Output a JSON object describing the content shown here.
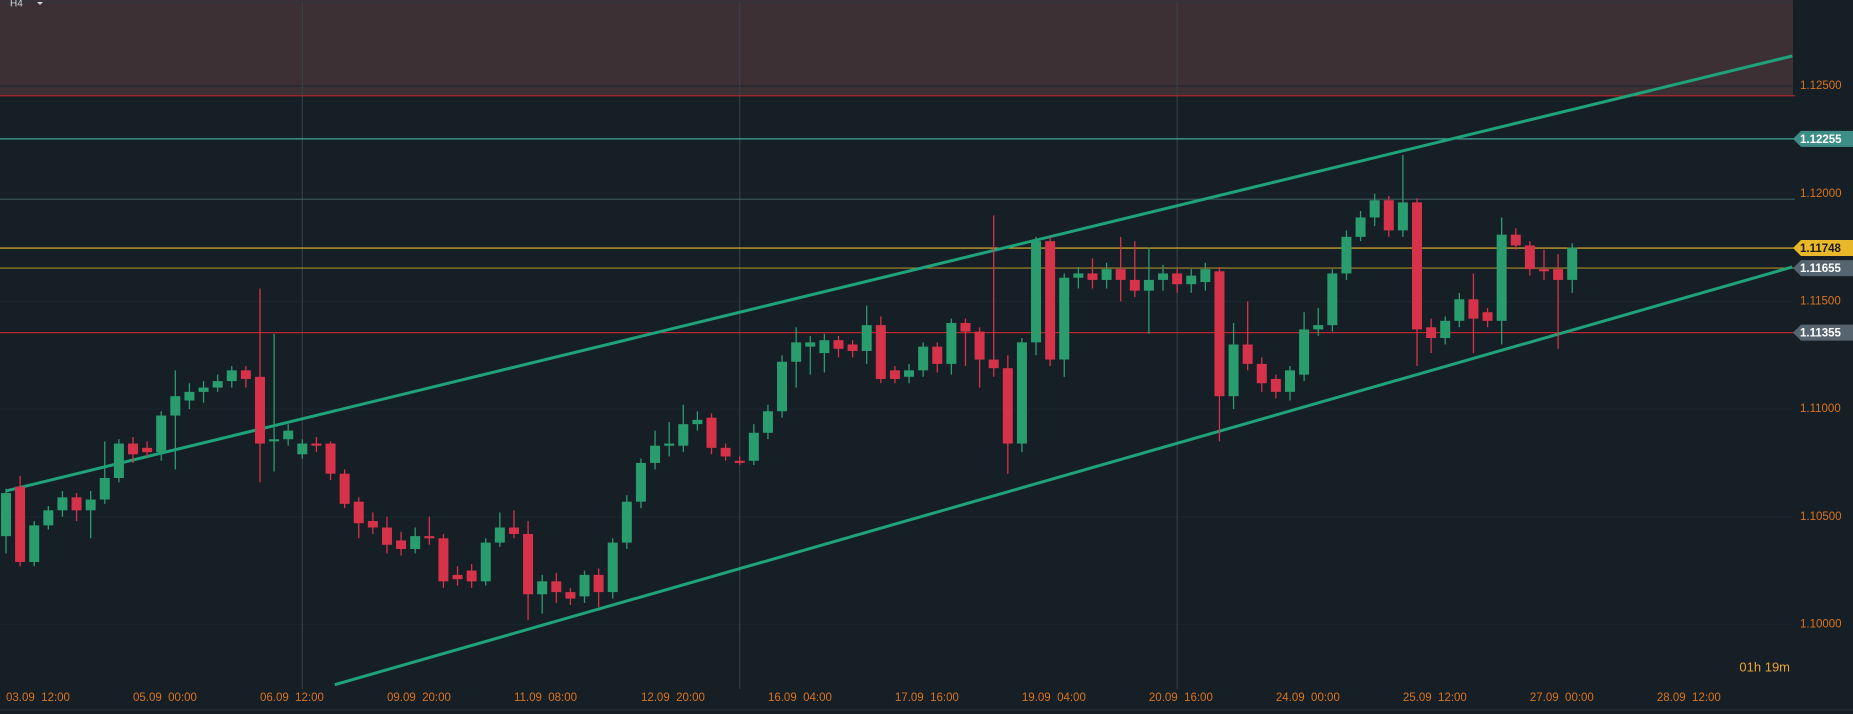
{
  "header": {
    "timeframe": "H4"
  },
  "chart_data": {
    "type": "candlestick",
    "timer": "01h 19m",
    "categories": [
      "03.09  12:00",
      null,
      null,
      null,
      null,
      null,
      null,
      null,
      null,
      "05.09  00:00",
      null,
      null,
      null,
      null,
      null,
      null,
      null,
      null,
      "06.09  12:00",
      null,
      null,
      null,
      null,
      null,
      null,
      null,
      null,
      "09.09  20:00",
      null,
      null,
      null,
      null,
      null,
      null,
      null,
      null,
      "11.09  08:00",
      null,
      null,
      null,
      null,
      null,
      null,
      null,
      null,
      "12.09  20:00",
      null,
      null,
      null,
      null,
      null,
      null,
      null,
      null,
      "16.09  04:00",
      null,
      null,
      null,
      null,
      null,
      null,
      null,
      null,
      "17.09  16:00",
      null,
      null,
      null,
      null,
      null,
      null,
      null,
      null,
      "19.09  04:00",
      null,
      null,
      null,
      null,
      null,
      null,
      null,
      null,
      "20.09  16:00",
      null,
      null,
      null,
      null,
      null,
      null,
      null,
      null,
      "24.09  00:00",
      null,
      null,
      null,
      null,
      null,
      null,
      null,
      null,
      "25.09  12:00",
      null,
      null,
      null,
      null,
      null,
      null,
      null,
      null,
      "27.09  00:00",
      null,
      null,
      null,
      null,
      null,
      null,
      null,
      null,
      "28.09  12:00"
    ],
    "open": [
      1.1041,
      1.1064,
      1.1029,
      1.1046,
      1.1053,
      1.1059,
      1.1053,
      1.1058,
      1.1068,
      1.1084,
      1.1082,
      1.108,
      1.1097,
      1.1104,
      1.1108,
      1.111,
      1.1113,
      1.1118,
      1.1115,
      1.1085,
      1.1086,
      1.1079,
      1.1084,
      1.1084,
      1.107,
      1.1057,
      1.1048,
      1.1045,
      1.1039,
      1.1035,
      1.1041,
      1.104,
      1.1023,
      1.1025,
      1.102,
      1.1038,
      1.1045,
      1.1042,
      1.1014,
      1.102,
      1.1015,
      1.1013,
      1.1023,
      1.1015,
      1.1038,
      1.1057,
      1.1075,
      1.1083,
      1.1083,
      1.1093,
      1.1096,
      1.1082,
      1.1076,
      1.1076,
      1.1089,
      1.1099,
      1.1122,
      1.1129,
      1.1126,
      1.1132,
      1.113,
      1.1127,
      1.1139,
      1.1118,
      1.1115,
      1.1118,
      1.1129,
      1.1121,
      1.114,
      1.1136,
      1.1123,
      1.1119,
      1.1084,
      1.1131,
      1.1178,
      1.1123,
      1.1161,
      1.1163,
      1.116,
      1.1165,
      1.116,
      1.1155,
      1.116,
      1.1163,
      1.1158,
      1.1159,
      1.1164,
      1.1106,
      1.113,
      1.1121,
      1.1114,
      1.1108,
      1.1116,
      1.1137,
      1.1139,
      1.1163,
      1.118,
      1.1189,
      1.1197,
      1.1183,
      1.1196,
      1.1138,
      1.1133,
      1.1141,
      1.1151,
      1.1145,
      1.1141,
      1.1181,
      1.1176,
      1.1165,
      1.1165,
      1.116,
      null,
      null,
      null,
      null,
      null,
      null
    ],
    "high": [
      1.1063,
      1.1069,
      1.1048,
      1.1055,
      1.1062,
      1.1061,
      1.1062,
      1.1085,
      1.1086,
      1.1087,
      1.1085,
      1.1099,
      1.1118,
      1.1112,
      1.1113,
      1.1116,
      1.112,
      1.112,
      1.1156,
      1.1135,
      1.1093,
      1.1086,
      1.1087,
      1.1085,
      1.1072,
      1.1059,
      1.1052,
      1.105,
      1.1043,
      1.1045,
      1.105,
      1.1042,
      1.1027,
      1.1028,
      1.104,
      1.1052,
      1.1053,
      1.1048,
      1.1023,
      1.1024,
      1.1017,
      1.1025,
      1.1026,
      1.104,
      1.106,
      1.1077,
      1.109,
      1.1094,
      1.1102,
      1.1099,
      1.1098,
      1.1084,
      1.1078,
      1.1093,
      1.1102,
      1.1125,
      1.1138,
      1.1134,
      1.1135,
      1.1134,
      1.1132,
      1.1148,
      1.1143,
      1.112,
      1.1121,
      1.1131,
      1.1131,
      1.1142,
      1.1142,
      1.1138,
      1.119,
      1.1125,
      1.1133,
      1.118,
      1.118,
      1.1163,
      1.1166,
      1.117,
      1.1168,
      1.118,
      1.1178,
      1.1175,
      1.1167,
      1.1165,
      1.1165,
      1.1168,
      1.1166,
      1.114,
      1.115,
      1.1124,
      1.1116,
      1.112,
      1.1145,
      1.1147,
      1.1165,
      1.1183,
      1.1192,
      1.12,
      1.1199,
      1.1218,
      1.1198,
      1.1142,
      1.1143,
      1.1154,
      1.1163,
      1.1147,
      1.1189,
      1.1184,
      1.1178,
      1.1174,
      1.1172,
      1.1177,
      null,
      null,
      null,
      null,
      null,
      null
    ],
    "low": [
      1.1033,
      1.1027,
      1.1027,
      1.1044,
      1.105,
      1.1048,
      1.104,
      1.1056,
      1.1066,
      1.1075,
      1.1078,
      1.1076,
      1.1072,
      1.11,
      1.1103,
      1.1108,
      1.111,
      1.111,
      1.1066,
      1.1071,
      1.1083,
      1.1077,
      1.108,
      1.1067,
      1.1054,
      1.104,
      1.1042,
      1.1033,
      1.1032,
      1.1033,
      1.1037,
      1.1017,
      1.1018,
      1.1017,
      1.1018,
      1.1036,
      1.104,
      1.1002,
      1.1005,
      1.101,
      1.1009,
      1.101,
      1.1008,
      1.1012,
      1.1035,
      1.1054,
      1.1072,
      1.1078,
      1.108,
      1.109,
      1.1079,
      1.1076,
      1.1074,
      1.1074,
      1.1086,
      1.1096,
      1.111,
      1.1116,
      1.1117,
      1.1124,
      1.1124,
      1.1121,
      1.1112,
      1.1112,
      1.1112,
      1.1115,
      1.1117,
      1.1116,
      1.112,
      1.111,
      1.1115,
      1.107,
      1.108,
      1.1125,
      1.112,
      1.1115,
      1.1156,
      1.1156,
      1.1156,
      1.115,
      1.1152,
      1.1135,
      1.1155,
      1.1154,
      1.1154,
      1.1155,
      1.1085,
      1.11,
      1.1118,
      1.1108,
      1.1105,
      1.1104,
      1.1113,
      1.1134,
      1.1136,
      1.116,
      1.1178,
      1.1185,
      1.118,
      1.118,
      1.112,
      1.1126,
      1.113,
      1.1138,
      1.1126,
      1.1138,
      1.113,
      1.1174,
      1.1162,
      1.116,
      1.1128,
      1.1154,
      null,
      null,
      null,
      null,
      null,
      null
    ],
    "close": [
      1.1061,
      1.1029,
      1.1046,
      1.1053,
      1.1059,
      1.1053,
      1.1058,
      1.1068,
      1.1084,
      1.1079,
      1.108,
      1.1097,
      1.1106,
      1.1108,
      1.111,
      1.1113,
      1.1118,
      1.1114,
      1.1084,
      1.1086,
      1.109,
      1.1084,
      1.1083,
      1.107,
      1.1056,
      1.1047,
      1.1045,
      1.1037,
      1.1035,
      1.1041,
      1.104,
      1.102,
      1.1021,
      1.102,
      1.1038,
      1.1045,
      1.1042,
      1.1014,
      1.102,
      1.1015,
      1.1012,
      1.1023,
      1.1015,
      1.1038,
      1.1057,
      1.1075,
      1.1083,
      1.1084,
      1.1093,
      1.1095,
      1.1082,
      1.1078,
      1.1075,
      1.1089,
      1.1099,
      1.1122,
      1.1131,
      1.1131,
      1.1132,
      1.1128,
      1.1127,
      1.1139,
      1.1114,
      1.1114,
      1.1118,
      1.1129,
      1.1121,
      1.114,
      1.1136,
      1.1123,
      1.1119,
      1.1084,
      1.1131,
      1.1178,
      1.1123,
      1.1161,
      1.1163,
      1.116,
      1.1165,
      1.116,
      1.1155,
      1.116,
      1.1163,
      1.1158,
      1.1162,
      1.1165,
      1.1106,
      1.113,
      1.1121,
      1.1112,
      1.1108,
      1.1118,
      1.1137,
      1.1139,
      1.1163,
      1.118,
      1.1189,
      1.1197,
      1.1183,
      1.1196,
      1.1137,
      1.1133,
      1.1141,
      1.1151,
      1.1142,
      1.1141,
      1.1181,
      1.1176,
      1.1165,
      1.1164,
      1.116,
      1.1175,
      null,
      null,
      null,
      null,
      null,
      null
    ],
    "up_color": "#2a9d6f",
    "down_color": "#d6334a",
    "ylim": [
      1.097,
      1.129
    ],
    "yticks": [
      {
        "value": 1.1,
        "label": "1.10000"
      },
      {
        "value": 1.105,
        "label": "1.10500"
      },
      {
        "value": 1.11,
        "label": "1.11000"
      },
      {
        "value": 1.115,
        "label": "1.11500"
      },
      {
        "value": 1.12,
        "label": "1.12000"
      },
      {
        "value": 1.125,
        "label": "1.12500"
      }
    ],
    "grid": true,
    "separators": [
      21,
      52,
      83
    ],
    "zone": {
      "from": 1.12455,
      "to": 1.129,
      "color": "#3d3035"
    },
    "levels": [
      {
        "value": 1.12455,
        "color": "#b8262f"
      },
      {
        "value": 1.12255,
        "color": "#3fa697",
        "tag": true
      },
      {
        "value": 1.11975,
        "color": "#3c5a5c"
      },
      {
        "value": 1.11748,
        "color": "#e9b82a",
        "tag": true
      },
      {
        "value": 1.11655,
        "color": "#a98a2a",
        "tag": true
      },
      {
        "value": 1.11355,
        "color": "#b8262f",
        "tag": true
      }
    ],
    "trendlines": [
      {
        "x": [
          0,
          126.6
        ],
        "y": [
          1.1062,
          1.1264
        ],
        "color": "#1fa37a"
      },
      {
        "x": [
          23.3,
          126.6
        ],
        "y": [
          1.0972,
          1.1166
        ],
        "color": "#1fa37a"
      }
    ]
  }
}
